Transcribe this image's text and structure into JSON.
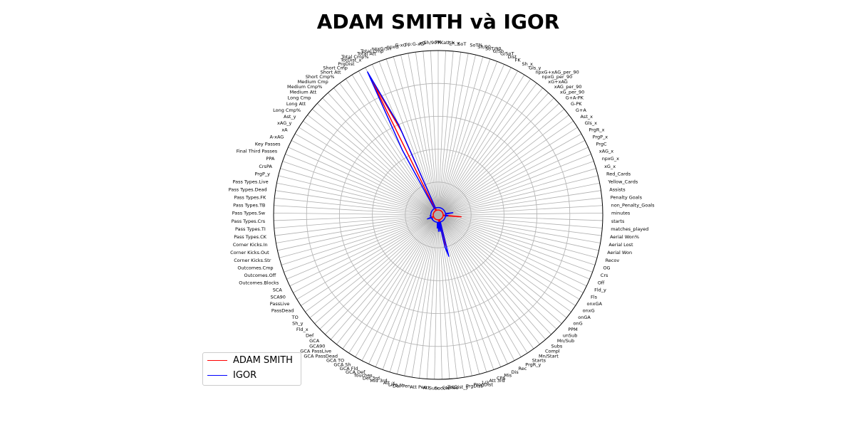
{
  "chart_data": {
    "type": "radar",
    "title": "ADAM SMITH và IGOR",
    "grid": true,
    "legend_position": "lower-left",
    "categories": [
      "PK",
      "PKatt_x",
      "Sh_y",
      "SoT",
      "SoT%",
      "Sh/90",
      "SoT/90",
      "G/Sh",
      "G/SoT",
      "Dist",
      "FK",
      "Sh_x",
      "Gls_y",
      "npxG+xAG_per_90",
      "npxG_per_90",
      "xG+xAG",
      "xAG_per_90",
      "xG_per_90",
      "G+A-PK",
      "G-PK",
      "G+A",
      "Ast_x",
      "Gls_x",
      "PrgR_x",
      "PrgP_x",
      "PrgC",
      "xAG_x",
      "npxG_x",
      "xG_x",
      "Red_Cards",
      "Yellow_Cards",
      "Assists",
      "Penalty Goals",
      "non_Penalty_Goals",
      "minutes",
      "starts",
      "matches_played",
      "Aerial Won%",
      "Aerial Lost",
      "Aerial Won",
      "Recov",
      "OG",
      "Crs",
      "Off",
      "Fld_y",
      "Fls",
      "onxGA",
      "onxG",
      "onGA",
      "onG",
      "PPM",
      "unSub",
      "Mn/Sub",
      "Subs",
      "Compl",
      "Mn/Start",
      "Starts",
      "PrgR_y",
      "Rec",
      "Dis",
      "Mis",
      "CPA",
      "Att 3rd",
      "1/3",
      "ProgDist",
      "PrgDist",
      "TotDist_y",
      "Carries",
      "Succ%",
      "Succ",
      "Att",
      "Att Pen",
      "Def Pen",
      "Live_y",
      "Att_x",
      "Mid 3rd",
      "Def 3rd",
      "Touches",
      "GCA Def",
      "GCA Fld",
      "GCA Sh",
      "GCA TO",
      "GCA PassDead",
      "GCA PassLive",
      "GCA90",
      "GCA",
      "Def",
      "Fld_x",
      "Sh_y",
      "TO",
      "PassDead",
      "PassLive",
      "SCA90",
      "SCA",
      "Outcomes.Blocks",
      "Outcomes.Off",
      "Outcomes.Cmp",
      "Corner Kicks.Str",
      "Corner Kicks.Out",
      "Corner Kicks.In",
      "Pass Types.CK",
      "Pass Types.TI",
      "Pass Types.Crs",
      "Pass Types.Sw",
      "Pass Types.TB",
      "Pass Types.FK",
      "Pass Types.Dead",
      "Pass Types.Live",
      "PrgP_y",
      "CrsPA",
      "PPA",
      "Final Third Passes",
      "Key Passes",
      "A-xAG",
      "xA",
      "xAG_y",
      "Ast_y",
      "Long Cmp%",
      "Long Att",
      "Long Cmp",
      "Medium Att",
      "Medium Cmp%",
      "Medium Cmp",
      "Short Cmp%",
      "Short Att",
      "Short Cmp",
      "PrgDist",
      "TotDist_x",
      "Total Cmp%",
      "Total Att",
      "Total Cmp",
      "npxG/Sh",
      "npxG",
      "G-xG",
      "np:G-xG",
      "xG",
      "Sh/90"
    ],
    "rlim": [
      0,
      100
    ],
    "series": [
      {
        "name": "ADAM SMITH",
        "color": "#ff0000"
      },
      {
        "name": "IGOR",
        "color": "#0000ff"
      }
    ]
  }
}
